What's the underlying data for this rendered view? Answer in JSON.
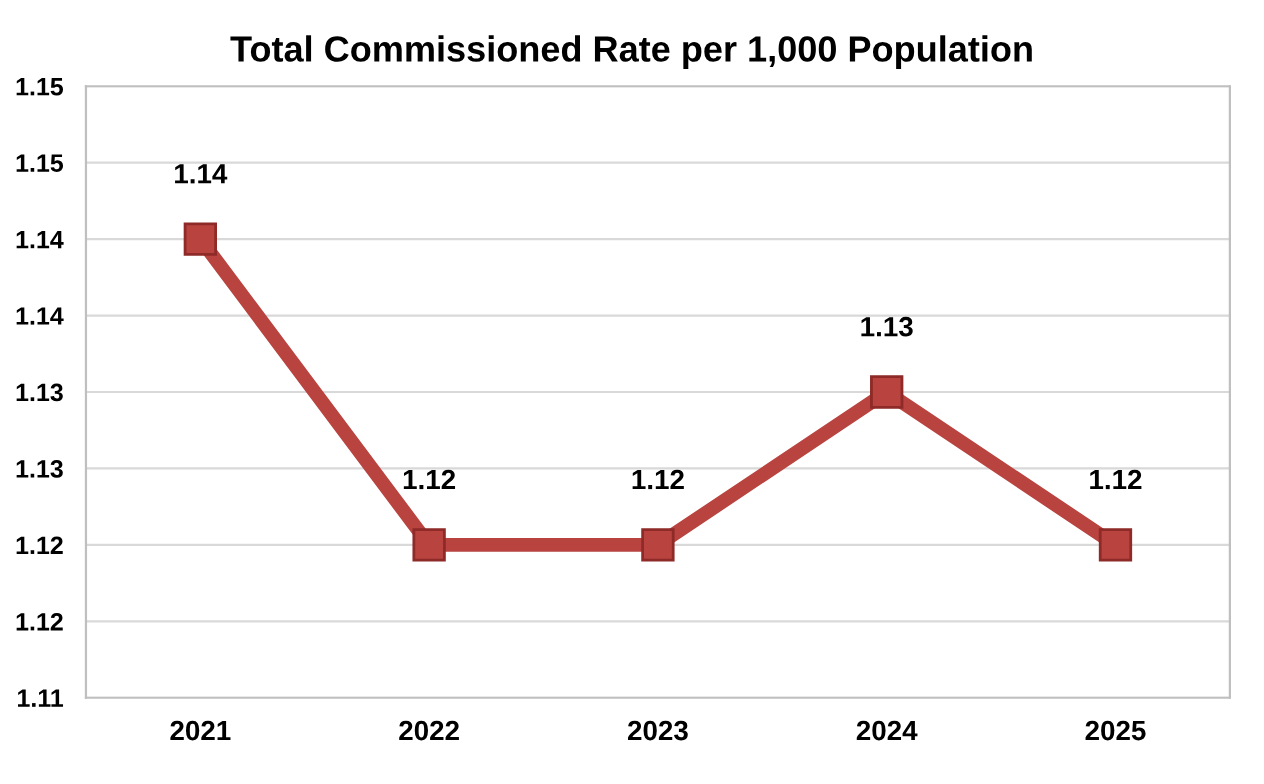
{
  "chart_data": {
    "type": "line",
    "title": "Total Commissioned Rate per 1,000 Population",
    "categories": [
      "2021",
      "2022",
      "2023",
      "2024",
      "2025"
    ],
    "series": [
      {
        "color": "#b8433f",
        "values": [
          1.14,
          1.12,
          1.12,
          1.13,
          1.12
        ]
      }
    ],
    "ylim": [
      1.11,
      1.15
    ],
    "yticks": [
      {
        "value": 1.11,
        "label": "1.11"
      },
      {
        "value": 1.115,
        "label": "1.12"
      },
      {
        "value": 1.12,
        "label": "1.12"
      },
      {
        "value": 1.125,
        "label": "1.13"
      },
      {
        "value": 1.13,
        "label": "1.13"
      },
      {
        "value": 1.135,
        "label": "1.14"
      },
      {
        "value": 1.14,
        "label": "1.14"
      },
      {
        "value": 1.145,
        "label": "1.15"
      },
      {
        "value": 1.15,
        "label": "1.15"
      }
    ],
    "grid": "y",
    "marker": "square",
    "line_style": "solid",
    "data_labels": true
  }
}
